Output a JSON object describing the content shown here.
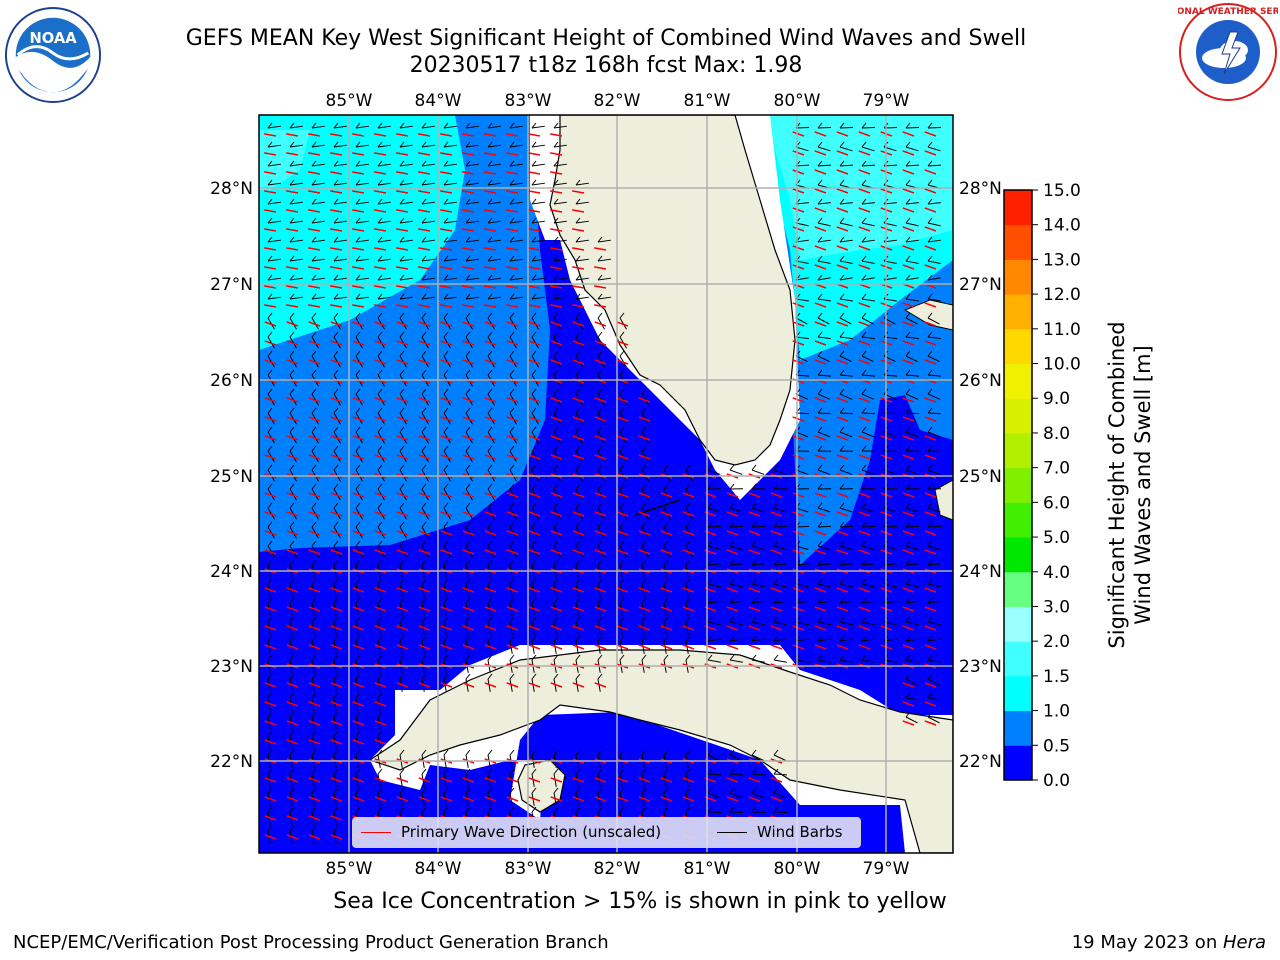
{
  "header": {
    "title_line1": "GEFS MEAN Key West Significant Height of Combined Wind Waves and Swell",
    "title_line2": "20230517 t18z 168h fcst   Max: 1.98"
  },
  "logos": {
    "left": {
      "name": "noaa-logo",
      "text": "NOAA"
    },
    "right": {
      "name": "nws-logo",
      "text": "NATIONAL WEATHER SERVICE"
    }
  },
  "map": {
    "lon_labels": [
      "85°W",
      "84°W",
      "83°W",
      "82°W",
      "81°W",
      "80°W",
      "79°W"
    ],
    "lat_labels": [
      "28°N",
      "27°N",
      "26°N",
      "25°N",
      "24°N",
      "23°N",
      "22°N"
    ]
  },
  "legend": {
    "wave_direction": "Primary Wave Direction (unscaled)",
    "wind_barbs": "Wind Barbs",
    "wave_color": "#ff0000",
    "barb_color": "#000000"
  },
  "colorbar": {
    "label_line1": "Significant Height of Combined",
    "label_line2": "Wind Waves and Swell [m]",
    "ticks": [
      "0.0",
      "0.5",
      "1.0",
      "1.5",
      "2.0",
      "3.0",
      "4.0",
      "5.0",
      "6.0",
      "7.0",
      "8.0",
      "9.0",
      "10.0",
      "11.0",
      "12.0",
      "13.0",
      "14.0",
      "15.0"
    ],
    "colors": [
      "#0000ff",
      "#0080ff",
      "#00ffff",
      "#40ffff",
      "#99ffff",
      "#66ff80",
      "#00e800",
      "#40f000",
      "#80f000",
      "#b0f000",
      "#d8f000",
      "#f0f000",
      "#ffd800",
      "#ffb000",
      "#ff8800",
      "#ff5000",
      "#ff2000"
    ]
  },
  "notes": {
    "ice": "Sea Ice Concentration > 15% is shown in pink to yellow",
    "footer_left": "NCEP/EMC/Verification Post Processing Product Generation Branch",
    "footer_date": "19 May 2023 on ",
    "footer_host": "Hera"
  },
  "chart_data": {
    "type": "heatmap",
    "title": "GEFS MEAN Key West Significant Height of Combined Wind Waves and Swell",
    "subtitle": "20230517 t18z 168h fcst   Max: 1.98",
    "variable": "Significant Height of Combined Wind Waves and Swell [m]",
    "max_value": 1.98,
    "lon_range": [
      -86.0,
      -78.25
    ],
    "lat_range": [
      21.0,
      28.75
    ],
    "color_levels": [
      0.0,
      0.5,
      1.0,
      1.5,
      2.0,
      3.0,
      4.0,
      5.0,
      6.0,
      7.0,
      8.0,
      9.0,
      10.0,
      11.0,
      12.0,
      13.0,
      14.0,
      15.0
    ],
    "regions": [
      {
        "area": "NE Gulf of Mexico (north of 26.5°N, west of 84°W)",
        "range_m": [
          1.5,
          2.0
        ]
      },
      {
        "area": "Central/eastern Gulf of Mexico",
        "range_m": [
          0.5,
          1.0
        ]
      },
      {
        "area": "Florida Straits, SW Florida shelf, Caribbean south of Cuba",
        "range_m": [
          0.0,
          0.5
        ]
      },
      {
        "area": "Atlantic east of Florida, north of 26°N",
        "range_m": [
          1.5,
          2.0
        ]
      },
      {
        "area": "Bahamas / Atlantic 24.5–26°N",
        "range_m": [
          0.5,
          1.0
        ]
      }
    ],
    "overlays": [
      "Primary Wave Direction (unscaled)",
      "Wind Barbs"
    ],
    "grid": true,
    "legend_position": "bottom"
  }
}
